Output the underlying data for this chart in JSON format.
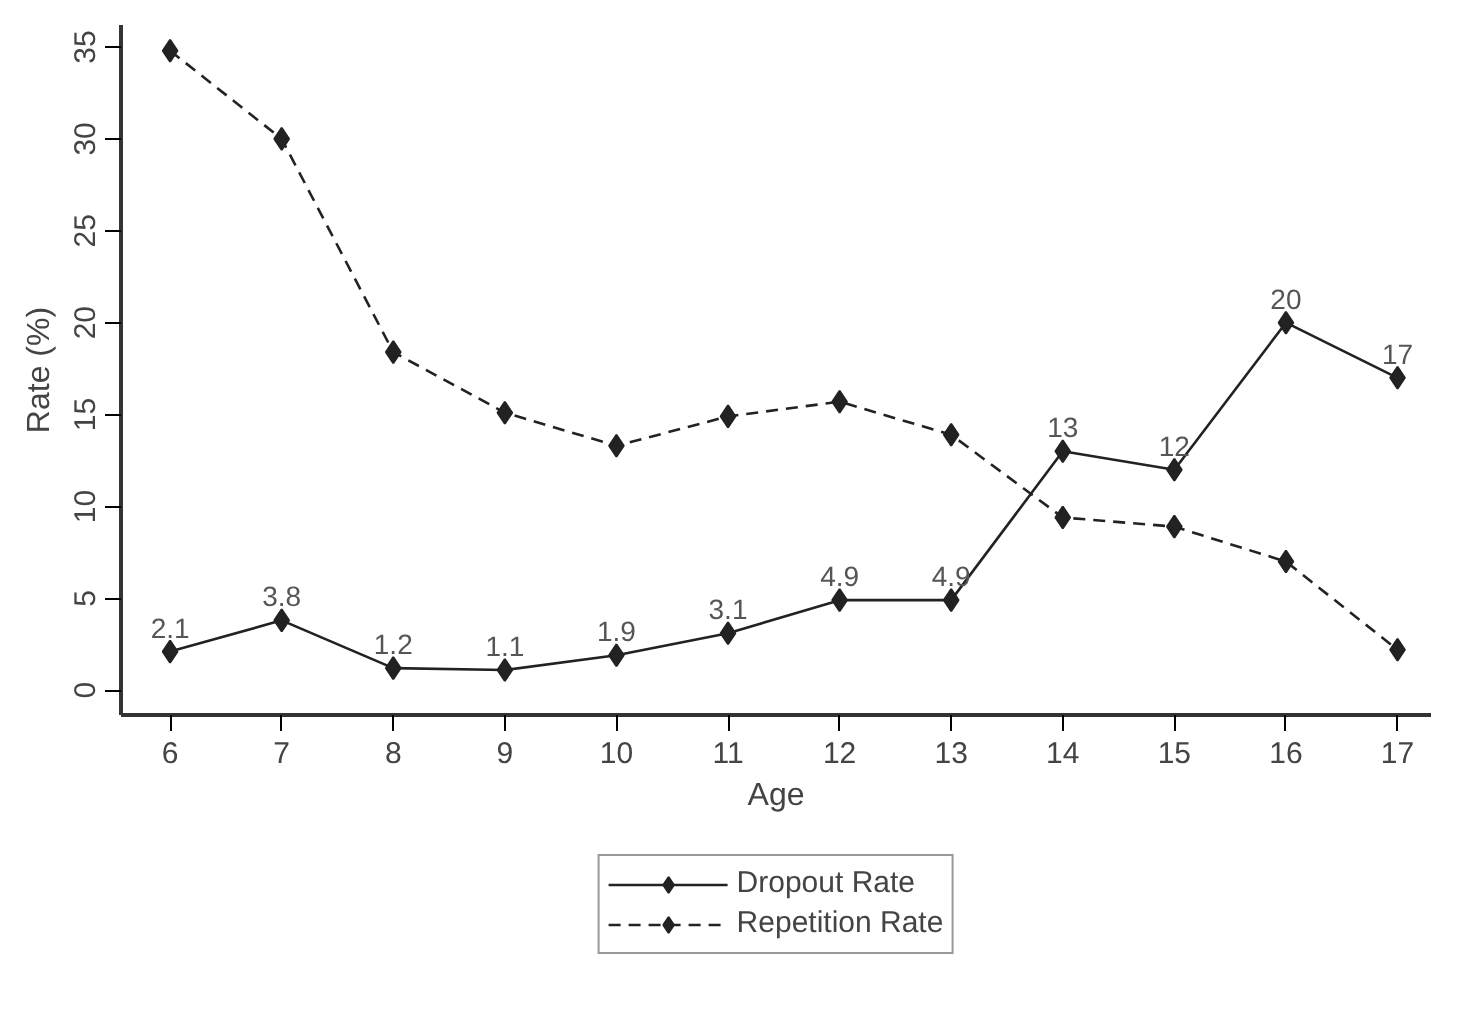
{
  "chart_data": {
    "type": "line",
    "xlabel": "Age",
    "ylabel": "Rate (%)",
    "x": [
      6,
      7,
      8,
      9,
      10,
      11,
      12,
      13,
      14,
      15,
      16,
      17
    ],
    "xlim": [
      5.56,
      17.3
    ],
    "ylim": [
      -1.35,
      36.2
    ],
    "xticks": [
      6,
      7,
      8,
      9,
      10,
      11,
      12,
      13,
      14,
      15,
      16,
      17
    ],
    "yticks": [
      0,
      5,
      10,
      15,
      20,
      25,
      30,
      35
    ],
    "grid": false,
    "legend": "bottom",
    "marker": "diamond",
    "series": [
      {
        "name": "Dropout Rate",
        "color": "#222222",
        "line_style": "solid",
        "values": [
          2.1,
          3.8,
          1.2,
          1.1,
          1.9,
          3.1,
          4.9,
          4.9,
          13,
          12,
          20,
          17
        ],
        "value_labels": [
          "2.1",
          "3.8",
          "1.2",
          "1.1",
          "1.9",
          "3.1",
          "4.9",
          "4.9",
          "13",
          "12",
          "20",
          "17"
        ]
      },
      {
        "name": "Repetition Rate",
        "color": "#222222",
        "line_style": "dashed",
        "values": [
          34.8,
          30.0,
          18.4,
          15.1,
          13.3,
          14.9,
          15.7,
          13.9,
          9.4,
          8.9,
          7.0,
          2.2
        ]
      }
    ]
  }
}
